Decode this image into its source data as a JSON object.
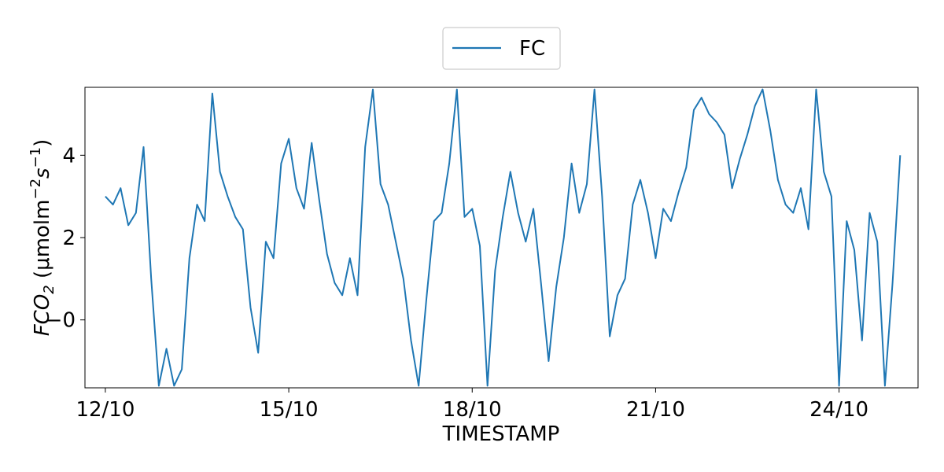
{
  "chart_data": {
    "type": "line",
    "xlabel": "TIMESTAMP",
    "ylabel": {
      "base": "FCO",
      "base_sub": "2",
      "unit_open": " (μmolm",
      "unit_sup1": "−2",
      "unit_mid": "s",
      "unit_sup2": "−1",
      "unit_close": ")"
    },
    "x_ticks": [
      "12/10",
      "15/10",
      "18/10",
      "21/10",
      "24/10"
    ],
    "y_ticks": [
      "−0",
      "2",
      "4"
    ],
    "xlim": [
      "2023-10-11T16:00",
      "2023-10-25T07:00"
    ],
    "ylim": [
      -1.65,
      5.65
    ],
    "grid": false,
    "legend": {
      "placement": "top-center",
      "entries": [
        "FC"
      ]
    },
    "series": [
      {
        "name": "FC",
        "color": "#1f77b4",
        "x": [
          "2023-10-12T00:00",
          "2023-10-12T03:00",
          "2023-10-12T06:00",
          "2023-10-12T09:00",
          "2023-10-12T12:00",
          "2023-10-12T15:00",
          "2023-10-12T18:00",
          "2023-10-12T21:00",
          "2023-10-13T00:00",
          "2023-10-13T03:00",
          "2023-10-13T06:00",
          "2023-10-13T09:00",
          "2023-10-13T12:00",
          "2023-10-13T15:00",
          "2023-10-13T18:00",
          "2023-10-13T21:00",
          "2023-10-14T00:00",
          "2023-10-14T03:00",
          "2023-10-14T06:00",
          "2023-10-14T09:00",
          "2023-10-14T12:00",
          "2023-10-14T15:00",
          "2023-10-14T18:00",
          "2023-10-14T21:00",
          "2023-10-15T00:00",
          "2023-10-15T03:00",
          "2023-10-15T06:00",
          "2023-10-15T09:00",
          "2023-10-15T12:00",
          "2023-10-15T15:00",
          "2023-10-15T18:00",
          "2023-10-15T21:00",
          "2023-10-16T00:00",
          "2023-10-16T03:00",
          "2023-10-16T06:00",
          "2023-10-16T09:00",
          "2023-10-16T12:00",
          "2023-10-16T15:00",
          "2023-10-16T18:00",
          "2023-10-16T21:00",
          "2023-10-17T00:00",
          "2023-10-17T03:00",
          "2023-10-17T06:00",
          "2023-10-17T09:00",
          "2023-10-17T12:00",
          "2023-10-17T15:00",
          "2023-10-17T18:00",
          "2023-10-17T21:00",
          "2023-10-18T00:00",
          "2023-10-18T03:00",
          "2023-10-18T06:00",
          "2023-10-18T09:00",
          "2023-10-18T12:00",
          "2023-10-18T15:00",
          "2023-10-18T18:00",
          "2023-10-18T21:00",
          "2023-10-19T00:00",
          "2023-10-19T03:00",
          "2023-10-19T06:00",
          "2023-10-19T09:00",
          "2023-10-19T12:00",
          "2023-10-19T15:00",
          "2023-10-19T18:00",
          "2023-10-19T21:00",
          "2023-10-20T00:00",
          "2023-10-20T03:00",
          "2023-10-20T06:00",
          "2023-10-20T09:00",
          "2023-10-20T12:00",
          "2023-10-20T15:00",
          "2023-10-20T18:00",
          "2023-10-20T21:00",
          "2023-10-21T00:00",
          "2023-10-21T03:00",
          "2023-10-21T06:00",
          "2023-10-21T09:00",
          "2023-10-21T12:00",
          "2023-10-21T15:00",
          "2023-10-21T18:00",
          "2023-10-21T21:00",
          "2023-10-22T00:00",
          "2023-10-22T03:00",
          "2023-10-22T06:00",
          "2023-10-22T09:00",
          "2023-10-22T12:00",
          "2023-10-22T15:00",
          "2023-10-22T18:00",
          "2023-10-22T21:00",
          "2023-10-23T00:00",
          "2023-10-23T03:00",
          "2023-10-23T06:00",
          "2023-10-23T09:00",
          "2023-10-23T12:00",
          "2023-10-23T15:00",
          "2023-10-23T18:00",
          "2023-10-23T21:00",
          "2023-10-24T00:00",
          "2023-10-24T03:00",
          "2023-10-24T06:00",
          "2023-10-24T09:00",
          "2023-10-24T12:00",
          "2023-10-24T15:00",
          "2023-10-24T18:00",
          "2023-10-24T21:00",
          "2023-10-25T00:00"
        ],
        "values": [
          3.0,
          2.8,
          3.2,
          2.3,
          2.6,
          4.2,
          1.0,
          -1.6,
          -0.7,
          -1.6,
          -1.2,
          1.5,
          2.8,
          2.4,
          5.5,
          3.6,
          3.0,
          2.5,
          2.2,
          0.3,
          -0.8,
          1.9,
          1.5,
          3.8,
          4.4,
          3.2,
          2.7,
          4.3,
          2.9,
          1.6,
          0.9,
          0.6,
          1.5,
          0.6,
          4.2,
          5.6,
          3.3,
          2.8,
          1.9,
          1.0,
          -0.5,
          -1.6,
          0.5,
          2.4,
          2.6,
          3.8,
          5.6,
          2.5,
          2.7,
          1.8,
          -1.6,
          1.2,
          2.5,
          3.6,
          2.6,
          1.9,
          2.7,
          0.9,
          -1.0,
          0.8,
          2.0,
          3.8,
          2.6,
          3.3,
          5.6,
          3.0,
          -0.4,
          0.6,
          1.0,
          2.8,
          3.4,
          2.6,
          1.5,
          2.7,
          2.4,
          3.1,
          3.7,
          5.1,
          5.4,
          5.0,
          4.8,
          4.5,
          3.2,
          3.9,
          4.5,
          5.2,
          5.6,
          4.6,
          3.4,
          2.8,
          2.6,
          3.2,
          2.2,
          5.6,
          3.6,
          3.0,
          -1.6,
          2.4,
          1.7,
          -0.5,
          2.6,
          1.9,
          -1.6,
          0.9,
          4.0
        ]
      }
    ]
  }
}
